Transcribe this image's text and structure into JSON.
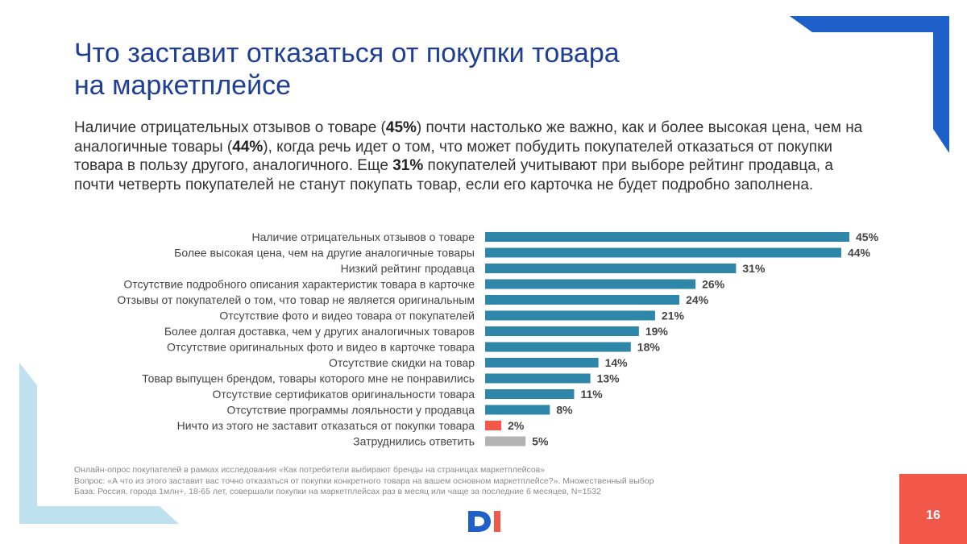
{
  "slide": {
    "title_line1": "Что заставит отказаться от покупки товара",
    "title_line2": "на маркетплейсе",
    "intro": {
      "p1": "Наличие отрицательных отзывов о товаре (",
      "v1": "45%",
      "p2": ") почти настолько же важно, как и более высокая цена, чем на аналогичные товары (",
      "v2": "44%",
      "p3": "), когда речь идет о том, что может побудить покупателей отказаться от покупки товара в пользу другого, аналогичного. Еще ",
      "v3": "31%",
      "p4": " покупателей учитывают при выборе рейтинг продавца, а почти четверть покупателей не станут покупать товар, если его карточка не будет подробно заполнена."
    },
    "notes": [
      "Онлайн-опрос покупателей в рамках исследования «Как потребители выбирают бренды на страницах маркетплейсов»",
      "Вопрос: «А что из этого заставит вас точно отказаться от покупки конкретного товара на вашем основном маркетплейсе?». Множественный выбор",
      "База: Россия, города 1млн+, 18-65 лет, совершали покупки на маркетплейсах раз в месяц или чаще за последние 6 месяцев, N=1532"
    ],
    "page_number": "16"
  },
  "colors": {
    "title": "#1e3f95",
    "bar_main": "#2e87a8",
    "bar_none": "#f2584a",
    "bar_hard": "#b3b3b3",
    "accent_blue": "#1f5fc9",
    "accent_light": "#bfe0ef",
    "page_box": "#f2584a"
  },
  "chart_data": {
    "type": "bar",
    "orientation": "horizontal",
    "unit": "%",
    "categories": [
      "Наличие отрицательных отзывов о товаре",
      "Более высокая цена, чем на другие аналогичные товары",
      "Низкий рейтинг продавца",
      "Отсутствие подробного описания характеристик товара в карточке",
      "Отзывы от покупателей о том, что товар не является оригинальным",
      "Отсутствие фото и видео товара от покупателей",
      "Более долгая доставка, чем у других аналогичных товаров",
      "Отсутствие оригинальных фото и видео в карточке товара",
      "Отсутствие скидки на товар",
      "Товар выпущен брендом, товары которого мне не понравились",
      "Отсутствие сертификатов оригинальности товара",
      "Отсутствие программы лояльности у продавца",
      "Ничто из этого не заставит отказаться от покупки товара",
      "Затруднились ответить"
    ],
    "values": [
      45,
      44,
      31,
      26,
      24,
      21,
      19,
      18,
      14,
      13,
      11,
      8,
      2,
      5
    ],
    "labels": [
      "45%",
      "44%",
      "31%",
      "26%",
      "24%",
      "21%",
      "19%",
      "18%",
      "14%",
      "13%",
      "11%",
      "8%",
      "2%",
      "5%"
    ],
    "bar_colors": [
      "#2e87a8",
      "#2e87a8",
      "#2e87a8",
      "#2e87a8",
      "#2e87a8",
      "#2e87a8",
      "#2e87a8",
      "#2e87a8",
      "#2e87a8",
      "#2e87a8",
      "#2e87a8",
      "#2e87a8",
      "#f2584a",
      "#b3b3b3"
    ],
    "xlim": [
      0,
      45
    ],
    "grid": false,
    "legend": "none"
  }
}
